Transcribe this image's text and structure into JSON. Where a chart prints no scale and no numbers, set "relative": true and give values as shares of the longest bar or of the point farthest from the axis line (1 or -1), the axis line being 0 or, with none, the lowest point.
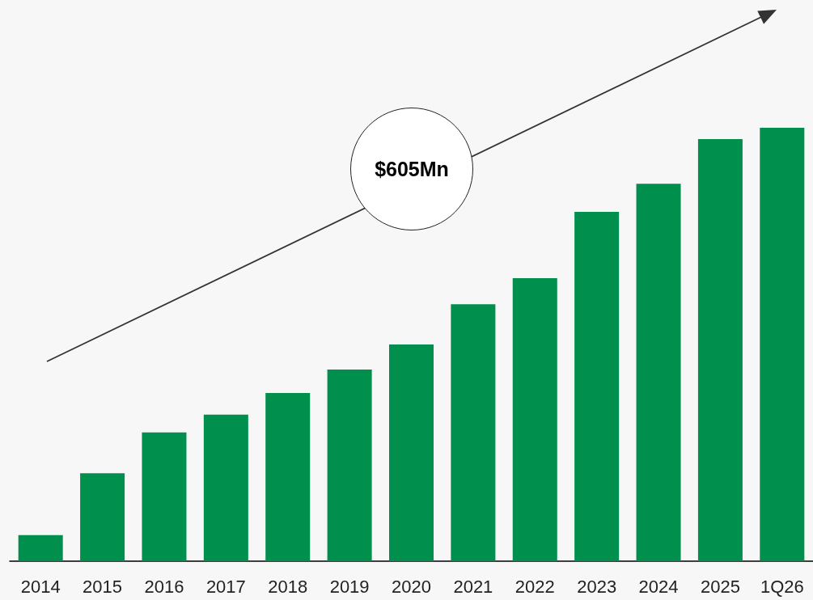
{
  "chart_data": {
    "type": "bar",
    "relative": true,
    "categories": [
      "2014",
      "2015",
      "2016",
      "2017",
      "2018",
      "2019",
      "2020",
      "2021",
      "2022",
      "2023",
      "2024",
      "2025",
      "1Q26"
    ],
    "values": [
      0.06,
      0.203,
      0.297,
      0.338,
      0.388,
      0.442,
      0.5,
      0.593,
      0.653,
      0.806,
      0.871,
      0.974,
      1
    ],
    "color": "#008f4c",
    "annotations": [
      "$605Mn"
    ],
    "grid": false
  }
}
